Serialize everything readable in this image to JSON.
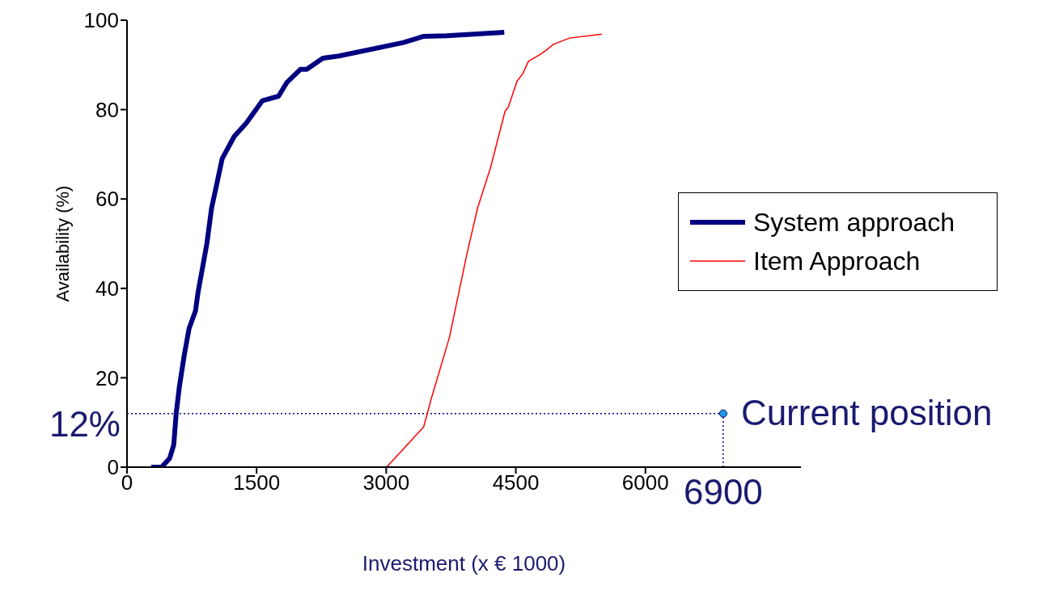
{
  "chart_data": {
    "type": "line",
    "xlabel": "Investment (x € 1000)",
    "ylabel": "Availability (%)",
    "xlim": [
      0,
      7800
    ],
    "xticks": [
      0,
      1500,
      3000,
      4500,
      6000
    ],
    "ylim": [
      0,
      100
    ],
    "yticks": [
      0,
      20,
      40,
      60,
      80,
      100
    ],
    "legend": "right",
    "marker": "none",
    "line_style": "solid",
    "series": [
      {
        "name": "System approach",
        "color": "#000080",
        "x": [
          280,
          400,
          494,
          541,
          569,
          606,
          662,
          718,
          793,
          821,
          868,
          924,
          979,
          1035,
          1101,
          1241,
          1381,
          1567,
          1754,
          1847,
          2006,
          2080,
          2267,
          2454,
          3200,
          3433,
          3700,
          4366
        ],
        "values": [
          0,
          0,
          2,
          5,
          12,
          18,
          25,
          31,
          35,
          39,
          44,
          50,
          58,
          63,
          69,
          74,
          77,
          82,
          83,
          86,
          89,
          89,
          91.5,
          92,
          95,
          96.4,
          96.5,
          97.3
        ]
      },
      {
        "name": "Item Approach",
        "color": "#ff0000",
        "x": [
          3004,
          3433,
          3517,
          3731,
          3834,
          3937,
          4058,
          4207,
          4375,
          4412,
          4515,
          4580,
          4646,
          4786,
          4851,
          4935,
          5121,
          5494
        ],
        "values": [
          0,
          9,
          15,
          29,
          38.5,
          48,
          58,
          67,
          79.6,
          80.5,
          86.4,
          88,
          90.8,
          92.4,
          93.3,
          94.6,
          96,
          96.9
        ]
      },
      {
        "type": "scatter",
        "color": "#1e9be0",
        "marker": "circle",
        "x": [
          6900
        ],
        "values": [
          12
        ]
      }
    ],
    "ref_lines": [
      {
        "axis": "y",
        "value": 12,
        "label": "12%",
        "color": "#000080",
        "line_style": "dotted"
      },
      {
        "axis": "x",
        "value": 6900,
        "label": "6900",
        "color": "#000080",
        "line_style": "dotted"
      }
    ],
    "annotations": [
      {
        "text": "Current position",
        "x": 6900,
        "y": 12
      }
    ]
  }
}
